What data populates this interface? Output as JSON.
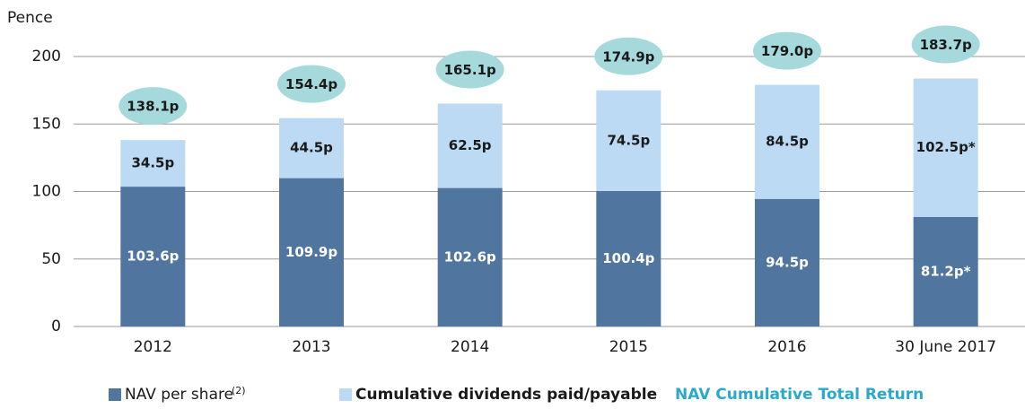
{
  "chart_data": {
    "type": "stacked_bar",
    "y_label": "Pence",
    "categories": [
      "2012",
      "2013",
      "2014",
      "2015",
      "2016",
      "30 June 2017"
    ],
    "series": [
      {
        "name": "NAV per share",
        "name_note": "(2)",
        "color": "#50759f",
        "values": [
          103.6,
          109.9,
          102.6,
          100.4,
          94.5,
          81.2
        ],
        "value_labels": [
          "103.6p",
          "109.9p",
          "102.6p",
          "100.4p",
          "94.5p",
          "81.2p*"
        ]
      },
      {
        "name": "Cumulative dividends paid/payable",
        "color": "#bcdaf3",
        "values": [
          34.5,
          44.5,
          62.5,
          74.5,
          84.5,
          102.5
        ],
        "value_labels": [
          "34.5p",
          "44.5p",
          "62.5p",
          "74.5p",
          "84.5p",
          "102.5p*"
        ]
      }
    ],
    "totals": {
      "name": "NAV Cumulative Total Return",
      "color": "#a6d9dc",
      "legend_color": "#2aa9c9",
      "values": [
        138.1,
        154.4,
        165.1,
        174.9,
        179.0,
        183.7
      ],
      "value_labels": [
        "138.1p",
        "154.4p",
        "165.1p",
        "174.9p",
        "179.0p",
        "183.7p"
      ]
    },
    "ylim": [
      0,
      200
    ],
    "yticks": [
      0,
      50,
      100,
      150,
      200
    ],
    "grid": true
  }
}
